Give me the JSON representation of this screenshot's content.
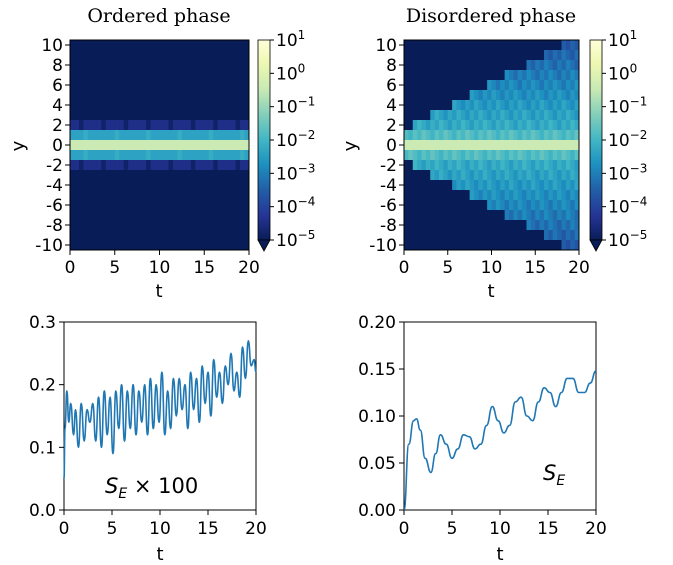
{
  "chart_data": [
    {
      "type": "heatmap",
      "title": "Ordered phase",
      "xlabel": "t",
      "ylabel": "y",
      "xlim": [
        0,
        20
      ],
      "ylim": [
        -10.5,
        10.5
      ],
      "xticks": [
        "0",
        "5",
        "10",
        "15",
        "20"
      ],
      "yticks": [
        "10",
        "8",
        "6",
        "4",
        "2",
        "0",
        "-2",
        "-4",
        "-6",
        "-8",
        "-10"
      ],
      "colorbar": {
        "scale": "log",
        "range": [
          1e-05,
          10
        ],
        "tick_labels": [
          {
            "base": "10",
            "exp": "1"
          },
          {
            "base": "10",
            "exp": "0"
          },
          {
            "base": "10",
            "exp": "−1"
          },
          {
            "base": "10",
            "exp": "−2"
          },
          {
            "base": "10",
            "exp": "−3"
          },
          {
            "base": "10",
            "exp": "−4"
          },
          {
            "base": "10",
            "exp": "−5"
          }
        ],
        "extend": "min"
      },
      "profile": [
        {
          "y": 0,
          "log10": -0.4
        },
        {
          "y": 1,
          "log10": -2.4
        },
        {
          "y": -1,
          "log10": -2.4
        },
        {
          "y": 2,
          "log10": -4.4
        },
        {
          "y": -2,
          "log10": -4.4
        }
      ]
    },
    {
      "type": "heatmap",
      "title": "Disordered phase",
      "xlabel": "t",
      "ylabel": "y",
      "xlim": [
        0,
        20
      ],
      "ylim": [
        -10.5,
        10.5
      ],
      "xticks": [
        "0",
        "5",
        "10",
        "15",
        "20"
      ],
      "yticks": [
        "10",
        "8",
        "6",
        "4",
        "2",
        "0",
        "-2",
        "-4",
        "-6",
        "-8",
        "-10"
      ],
      "colorbar": {
        "scale": "log",
        "range": [
          1e-05,
          10
        ],
        "tick_labels": [
          {
            "base": "10",
            "exp": "1"
          },
          {
            "base": "10",
            "exp": "0"
          },
          {
            "base": "10",
            "exp": "−1"
          },
          {
            "base": "10",
            "exp": "−2"
          },
          {
            "base": "10",
            "exp": "−3"
          },
          {
            "base": "10",
            "exp": "−4"
          },
          {
            "base": "10",
            "exp": "−5"
          }
        ],
        "extend": "min"
      },
      "spread_rate": 0.47,
      "center_log10": -0.4
    },
    {
      "type": "line",
      "annotation": {
        "symbol": "S",
        "sub": "E",
        "suffix": " × 100"
      },
      "xlabel": "t",
      "xlim": [
        0,
        20
      ],
      "ylim": [
        0,
        0.3
      ],
      "xticks": [
        "0",
        "5",
        "10",
        "15",
        "20"
      ],
      "yticks": [
        "0.0",
        "0.1",
        "0.2",
        "0.3"
      ],
      "color": "#1f77b4",
      "x": [
        0,
        0.1,
        0.3,
        0.5,
        0.7,
        1.0,
        1.2,
        1.5,
        1.8,
        2.1,
        2.4,
        2.7,
        3.0,
        3.3,
        3.6,
        3.9,
        4.2,
        4.5,
        4.8,
        5.1,
        5.4,
        5.7,
        6.0,
        6.3,
        6.6,
        6.9,
        7.2,
        7.5,
        7.8,
        8.1,
        8.4,
        8.7,
        9.0,
        9.3,
        9.6,
        9.9,
        10.2,
        10.5,
        10.8,
        11.1,
        11.4,
        11.7,
        12.0,
        12.3,
        12.6,
        12.9,
        13.2,
        13.5,
        13.8,
        14.1,
        14.4,
        14.7,
        15.0,
        15.3,
        15.6,
        15.9,
        16.2,
        16.5,
        16.8,
        17.1,
        17.4,
        17.7,
        18.0,
        18.3,
        18.6,
        18.9,
        19.2,
        19.5,
        19.8,
        20.0
      ],
      "y": [
        0.05,
        0.13,
        0.19,
        0.14,
        0.17,
        0.12,
        0.16,
        0.1,
        0.17,
        0.11,
        0.16,
        0.14,
        0.17,
        0.11,
        0.18,
        0.1,
        0.19,
        0.12,
        0.18,
        0.09,
        0.19,
        0.13,
        0.2,
        0.11,
        0.19,
        0.13,
        0.2,
        0.12,
        0.19,
        0.14,
        0.2,
        0.12,
        0.21,
        0.13,
        0.2,
        0.14,
        0.22,
        0.12,
        0.19,
        0.13,
        0.21,
        0.15,
        0.21,
        0.16,
        0.2,
        0.13,
        0.22,
        0.16,
        0.21,
        0.14,
        0.23,
        0.17,
        0.22,
        0.15,
        0.24,
        0.18,
        0.22,
        0.17,
        0.23,
        0.2,
        0.25,
        0.19,
        0.22,
        0.18,
        0.26,
        0.21,
        0.27,
        0.23,
        0.24,
        0.22
      ]
    },
    {
      "type": "line",
      "annotation": {
        "symbol": "S",
        "sub": "E",
        "suffix": ""
      },
      "xlabel": "t",
      "xlim": [
        0,
        20
      ],
      "ylim": [
        0,
        0.2
      ],
      "xticks": [
        "0",
        "5",
        "10",
        "15",
        "20"
      ],
      "yticks": [
        "0.00",
        "0.05",
        "0.10",
        "0.15",
        "0.20"
      ],
      "color": "#1f77b4",
      "x": [
        0,
        0.5,
        1.0,
        1.3,
        1.7,
        2.2,
        2.8,
        3.3,
        3.8,
        4.4,
        5.0,
        5.6,
        6.2,
        6.8,
        7.4,
        8.0,
        8.6,
        9.2,
        9.8,
        10.4,
        11.0,
        11.6,
        12.2,
        12.8,
        13.4,
        14.0,
        14.6,
        15.2,
        15.8,
        16.4,
        17.0,
        17.6,
        18.2,
        18.8,
        19.4,
        20.0
      ],
      "y": [
        0.0,
        0.07,
        0.095,
        0.097,
        0.085,
        0.055,
        0.04,
        0.06,
        0.08,
        0.07,
        0.055,
        0.065,
        0.08,
        0.078,
        0.065,
        0.07,
        0.09,
        0.11,
        0.095,
        0.082,
        0.09,
        0.115,
        0.12,
        0.1,
        0.095,
        0.115,
        0.13,
        0.125,
        0.11,
        0.125,
        0.14,
        0.14,
        0.125,
        0.125,
        0.135,
        0.148
      ]
    }
  ]
}
